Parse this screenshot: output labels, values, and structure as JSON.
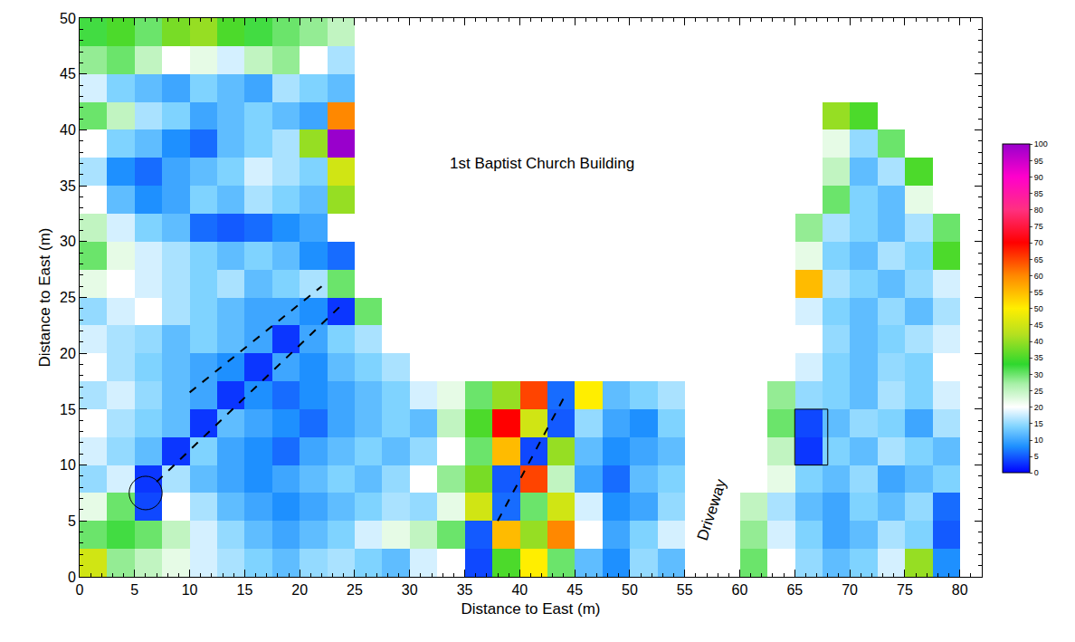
{
  "chart_data": {
    "type": "heatmap",
    "xlabel": "Distance to East (m)",
    "ylabel": "Distance to East (m)",
    "xlim": [
      0,
      82
    ],
    "xticks": [
      0,
      5,
      10,
      15,
      20,
      25,
      30,
      35,
      40,
      45,
      50,
      55,
      60,
      65,
      70,
      75,
      80
    ],
    "ylim": [
      0,
      50
    ],
    "yticks": [
      0,
      5,
      10,
      15,
      20,
      25,
      30,
      35,
      40,
      45,
      50
    ],
    "zlim": [
      0,
      100
    ],
    "zticks": [
      0,
      5,
      10,
      15,
      20,
      25,
      30,
      35,
      40,
      45,
      50,
      55,
      60,
      65,
      70,
      75,
      80,
      85,
      90,
      95,
      100
    ],
    "x": [
      1.25,
      3.75,
      6.25,
      8.75,
      11.25,
      13.75,
      16.25,
      18.75,
      21.25,
      23.75,
      26.25,
      28.75,
      31.25,
      33.75,
      36.25,
      38.75,
      41.25,
      43.75,
      46.25,
      48.75,
      51.25,
      53.75,
      56.25,
      58.75,
      61.25,
      63.75,
      66.25,
      68.75,
      71.25,
      73.75,
      76.25,
      78.75
    ],
    "y": [
      1.25,
      3.75,
      6.25,
      8.75,
      11.25,
      13.75,
      16.25,
      18.75,
      21.25,
      23.75,
      26.25,
      28.75,
      31.25,
      33.75,
      36.25,
      38.75,
      41.25,
      43.75,
      46.25,
      48.75
    ],
    "cells": [
      [
        45,
        28,
        25,
        22,
        18,
        16,
        14,
        12,
        15,
        16,
        14,
        12,
        18,
        20,
        4,
        35,
        50,
        30,
        12,
        8,
        15,
        12,
        null,
        null,
        30,
        20,
        15,
        12,
        14,
        18,
        40,
        8
      ],
      [
        30,
        32,
        30,
        25,
        18,
        15,
        12,
        10,
        12,
        14,
        18,
        22,
        25,
        30,
        5,
        55,
        40,
        60,
        20,
        10,
        14,
        18,
        null,
        null,
        28,
        18,
        14,
        10,
        12,
        16,
        14,
        5
      ],
      [
        22,
        30,
        4,
        20,
        16,
        12,
        10,
        8,
        10,
        12,
        14,
        16,
        15,
        22,
        45,
        6,
        30,
        45,
        18,
        8,
        10,
        15,
        null,
        null,
        25,
        16,
        12,
        10,
        14,
        12,
        15,
        6
      ],
      [
        15,
        18,
        3,
        16,
        12,
        10,
        8,
        10,
        12,
        14,
        12,
        15,
        20,
        28,
        38,
        5,
        65,
        25,
        10,
        6,
        12,
        14,
        null,
        null,
        null,
        22,
        14,
        12,
        15,
        10,
        12,
        14
      ],
      [
        18,
        15,
        12,
        3,
        14,
        10,
        8,
        6,
        10,
        12,
        14,
        12,
        15,
        20,
        30,
        55,
        4,
        40,
        12,
        8,
        10,
        12,
        null,
        null,
        null,
        25,
        3,
        14,
        12,
        16,
        14,
        12
      ],
      [
        20,
        16,
        14,
        12,
        3,
        12,
        10,
        8,
        6,
        10,
        12,
        14,
        12,
        25,
        35,
        70,
        45,
        5,
        15,
        10,
        8,
        14,
        null,
        null,
        null,
        30,
        4,
        12,
        15,
        14,
        10,
        16
      ],
      [
        16,
        18,
        15,
        12,
        10,
        3,
        8,
        6,
        8,
        10,
        12,
        14,
        18,
        22,
        30,
        40,
        65,
        6,
        50,
        12,
        14,
        16,
        null,
        null,
        null,
        28,
        15,
        14,
        12,
        16,
        14,
        18
      ],
      [
        20,
        16,
        14,
        12,
        10,
        8,
        3,
        10,
        8,
        12,
        14,
        16,
        null,
        null,
        null,
        null,
        null,
        null,
        null,
        null,
        null,
        null,
        null,
        null,
        null,
        null,
        18,
        14,
        12,
        15,
        14,
        20
      ],
      [
        18,
        16,
        15,
        12,
        14,
        12,
        10,
        3,
        10,
        14,
        16,
        null,
        null,
        null,
        null,
        null,
        null,
        null,
        null,
        null,
        null,
        null,
        null,
        null,
        null,
        null,
        20,
        15,
        12,
        14,
        16,
        18
      ],
      [
        15,
        18,
        20,
        16,
        14,
        12,
        10,
        10,
        8,
        3,
        30,
        null,
        null,
        null,
        null,
        null,
        null,
        null,
        null,
        null,
        null,
        null,
        null,
        null,
        null,
        null,
        18,
        14,
        12,
        15,
        12,
        16
      ],
      [
        22,
        20,
        18,
        16,
        14,
        16,
        12,
        14,
        16,
        30,
        null,
        null,
        null,
        null,
        null,
        null,
        null,
        null,
        null,
        null,
        null,
        null,
        null,
        null,
        null,
        null,
        55,
        16,
        14,
        12,
        15,
        18
      ],
      [
        30,
        22,
        18,
        16,
        14,
        12,
        14,
        12,
        8,
        6,
        null,
        null,
        null,
        null,
        null,
        null,
        null,
        null,
        null,
        null,
        null,
        null,
        null,
        null,
        null,
        null,
        22,
        14,
        12,
        16,
        14,
        35
      ],
      [
        25,
        18,
        14,
        12,
        6,
        5,
        6,
        8,
        10,
        20,
        null,
        null,
        null,
        null,
        null,
        null,
        null,
        null,
        null,
        null,
        null,
        null,
        null,
        null,
        null,
        null,
        28,
        16,
        14,
        12,
        16,
        30
      ],
      [
        20,
        12,
        8,
        10,
        14,
        12,
        16,
        14,
        12,
        40,
        null,
        null,
        null,
        null,
        null,
        null,
        null,
        null,
        null,
        null,
        null,
        null,
        null,
        null,
        null,
        null,
        null,
        30,
        14,
        12,
        22,
        null
      ],
      [
        16,
        8,
        6,
        10,
        12,
        14,
        18,
        16,
        14,
        45,
        null,
        null,
        null,
        null,
        null,
        null,
        null,
        null,
        null,
        null,
        null,
        null,
        null,
        null,
        null,
        null,
        null,
        25,
        12,
        16,
        35,
        null
      ],
      [
        20,
        14,
        12,
        8,
        6,
        12,
        14,
        16,
        40,
        100,
        null,
        null,
        null,
        null,
        null,
        null,
        null,
        null,
        null,
        null,
        null,
        null,
        null,
        null,
        null,
        null,
        null,
        22,
        15,
        30,
        null,
        null
      ],
      [
        30,
        25,
        16,
        14,
        10,
        12,
        14,
        12,
        10,
        60,
        null,
        null,
        null,
        null,
        null,
        null,
        null,
        null,
        null,
        null,
        null,
        null,
        null,
        null,
        null,
        null,
        null,
        40,
        35,
        null,
        null,
        null
      ],
      [
        18,
        14,
        12,
        10,
        14,
        12,
        10,
        16,
        14,
        12,
        null,
        null,
        null,
        null,
        null,
        null,
        null,
        null,
        null,
        null,
        null,
        null,
        null,
        null,
        null,
        null,
        null,
        null,
        null,
        null,
        null,
        null
      ],
      [
        28,
        30,
        25,
        20,
        22,
        18,
        25,
        28,
        20,
        16,
        null,
        null,
        null,
        null,
        null,
        null,
        null,
        null,
        null,
        null,
        null,
        null,
        null,
        null,
        null,
        null,
        null,
        null,
        null,
        null,
        null,
        null
      ],
      [
        32,
        35,
        30,
        38,
        40,
        35,
        32,
        30,
        28,
        25,
        null,
        null,
        null,
        null,
        null,
        null,
        null,
        null,
        null,
        null,
        null,
        null,
        null,
        null,
        null,
        null,
        null,
        null,
        null,
        null,
        null,
        null
      ]
    ],
    "annotations": [
      {
        "text": "1st Baptist Church Building",
        "x": 42,
        "y": 37
      },
      {
        "text": "Driveway",
        "x": 57.5,
        "y": 6
      }
    ],
    "dashed_lines": [
      {
        "x": [
          10,
          22
        ],
        "y": [
          16.5,
          26
        ]
      },
      {
        "x": [
          7,
          24
        ],
        "y": [
          8.5,
          24.5
        ]
      },
      {
        "x": [
          38,
          44
        ],
        "y": [
          5,
          16
        ]
      }
    ],
    "circles": [
      {
        "x": [
          4.5,
          7.5
        ],
        "y": [
          6,
          9
        ]
      }
    ],
    "rectangles": [
      {
        "x": [
          65,
          68
        ],
        "y": [
          10,
          15
        ]
      }
    ]
  }
}
